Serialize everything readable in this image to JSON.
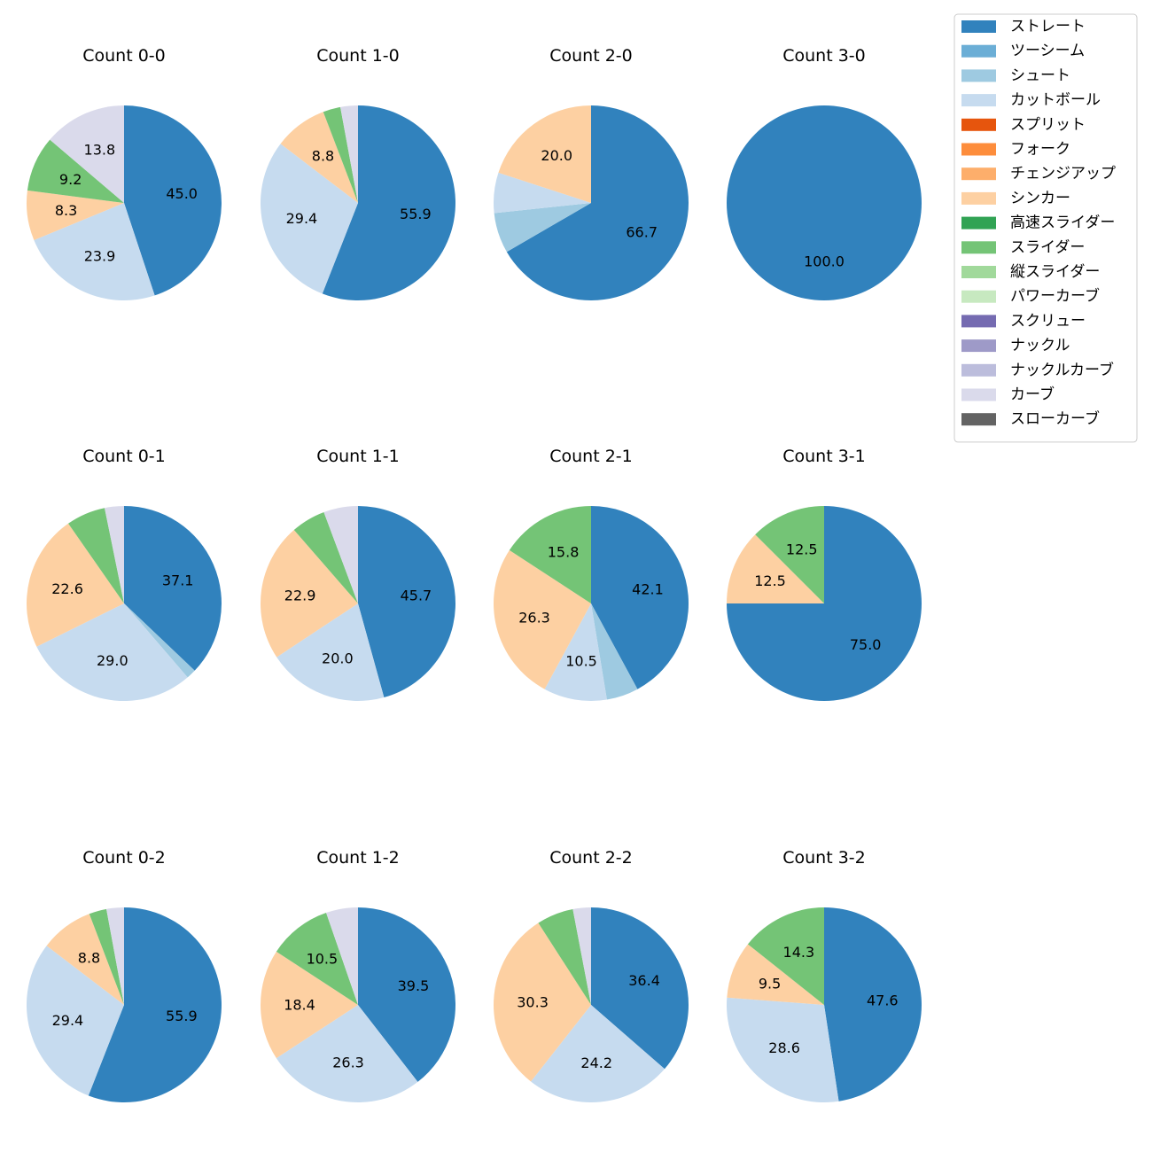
{
  "legend": {
    "placement": "top-right",
    "items": [
      {
        "name": "ストレート",
        "color": "#3182bd"
      },
      {
        "name": "ツーシーム",
        "color": "#6baed6"
      },
      {
        "name": "シュート",
        "color": "#9ecae1"
      },
      {
        "name": "カットボール",
        "color": "#c6dbef"
      },
      {
        "name": "スプリット",
        "color": "#e6550d"
      },
      {
        "name": "フォーク",
        "color": "#fd8d3c"
      },
      {
        "name": "チェンジアップ",
        "color": "#fdae6b"
      },
      {
        "name": "シンカー",
        "color": "#fdd0a2"
      },
      {
        "name": "高速スライダー",
        "color": "#31a354"
      },
      {
        "name": "スライダー",
        "color": "#74c476"
      },
      {
        "name": "縦スライダー",
        "color": "#a1d99b"
      },
      {
        "name": "パワーカーブ",
        "color": "#c7e9c0"
      },
      {
        "name": "スクリュー",
        "color": "#756bb1"
      },
      {
        "name": "ナックル",
        "color": "#9e9ac8"
      },
      {
        "name": "ナックルカーブ",
        "color": "#bcbddc"
      },
      {
        "name": "カーブ",
        "color": "#dadaeb"
      },
      {
        "name": "スローカーブ",
        "color": "#636363"
      }
    ]
  },
  "chart_data": [
    {
      "type": "pie",
      "title": "Count 0-0",
      "slices": [
        {
          "name": "ストレート",
          "value": 45.0,
          "label": "45.0"
        },
        {
          "name": "カットボール",
          "value": 23.9,
          "label": "23.9"
        },
        {
          "name": "シンカー",
          "value": 8.3,
          "label": "8.3"
        },
        {
          "name": "スライダー",
          "value": 9.2,
          "label": "9.2"
        },
        {
          "name": "カーブ",
          "value": 13.8,
          "label": "13.8"
        }
      ]
    },
    {
      "type": "pie",
      "title": "Count 1-0",
      "slices": [
        {
          "name": "ストレート",
          "value": 55.9,
          "label": "55.9"
        },
        {
          "name": "カットボール",
          "value": 29.4,
          "label": "29.4"
        },
        {
          "name": "シンカー",
          "value": 8.8,
          "label": "8.8"
        },
        {
          "name": "スライダー",
          "value": 2.9,
          "label": ""
        },
        {
          "name": "カーブ",
          "value": 2.9,
          "label": ""
        }
      ]
    },
    {
      "type": "pie",
      "title": "Count 2-0",
      "slices": [
        {
          "name": "ストレート",
          "value": 66.7,
          "label": "66.7"
        },
        {
          "name": "シュート",
          "value": 6.7,
          "label": ""
        },
        {
          "name": "カットボール",
          "value": 6.7,
          "label": ""
        },
        {
          "name": "シンカー",
          "value": 20.0,
          "label": "20.0"
        }
      ]
    },
    {
      "type": "pie",
      "title": "Count 3-0",
      "slices": [
        {
          "name": "ストレート",
          "value": 100.0,
          "label": "100.0"
        }
      ]
    },
    {
      "type": "pie",
      "title": "Count 0-1",
      "slices": [
        {
          "name": "ストレート",
          "value": 37.1,
          "label": "37.1"
        },
        {
          "name": "シュート",
          "value": 1.6,
          "label": ""
        },
        {
          "name": "カットボール",
          "value": 29.0,
          "label": "29.0"
        },
        {
          "name": "シンカー",
          "value": 22.6,
          "label": "22.6"
        },
        {
          "name": "スライダー",
          "value": 6.5,
          "label": ""
        },
        {
          "name": "カーブ",
          "value": 3.2,
          "label": ""
        }
      ]
    },
    {
      "type": "pie",
      "title": "Count 1-1",
      "slices": [
        {
          "name": "ストレート",
          "value": 45.7,
          "label": "45.7"
        },
        {
          "name": "カットボール",
          "value": 20.0,
          "label": "20.0"
        },
        {
          "name": "シンカー",
          "value": 22.9,
          "label": "22.9"
        },
        {
          "name": "スライダー",
          "value": 5.7,
          "label": ""
        },
        {
          "name": "カーブ",
          "value": 5.7,
          "label": ""
        }
      ]
    },
    {
      "type": "pie",
      "title": "Count 2-1",
      "slices": [
        {
          "name": "ストレート",
          "value": 42.1,
          "label": "42.1"
        },
        {
          "name": "シュート",
          "value": 5.3,
          "label": ""
        },
        {
          "name": "カットボール",
          "value": 10.5,
          "label": "10.5"
        },
        {
          "name": "シンカー",
          "value": 26.3,
          "label": "26.3"
        },
        {
          "name": "スライダー",
          "value": 15.8,
          "label": "15.8"
        }
      ]
    },
    {
      "type": "pie",
      "title": "Count 3-1",
      "slices": [
        {
          "name": "ストレート",
          "value": 75.0,
          "label": "75.0"
        },
        {
          "name": "シンカー",
          "value": 12.5,
          "label": "12.5"
        },
        {
          "name": "スライダー",
          "value": 12.5,
          "label": "12.5"
        }
      ]
    },
    {
      "type": "pie",
      "title": "Count 0-2",
      "slices": [
        {
          "name": "ストレート",
          "value": 55.9,
          "label": "55.9"
        },
        {
          "name": "カットボール",
          "value": 29.4,
          "label": "29.4"
        },
        {
          "name": "シンカー",
          "value": 8.8,
          "label": "8.8"
        },
        {
          "name": "スライダー",
          "value": 2.9,
          "label": ""
        },
        {
          "name": "カーブ",
          "value": 2.9,
          "label": ""
        }
      ]
    },
    {
      "type": "pie",
      "title": "Count 1-2",
      "slices": [
        {
          "name": "ストレート",
          "value": 39.5,
          "label": "39.5"
        },
        {
          "name": "カットボール",
          "value": 26.3,
          "label": "26.3"
        },
        {
          "name": "シンカー",
          "value": 18.4,
          "label": "18.4"
        },
        {
          "name": "スライダー",
          "value": 10.5,
          "label": "10.5"
        },
        {
          "name": "カーブ",
          "value": 5.3,
          "label": ""
        }
      ]
    },
    {
      "type": "pie",
      "title": "Count 2-2",
      "slices": [
        {
          "name": "ストレート",
          "value": 36.4,
          "label": "36.4"
        },
        {
          "name": "カットボール",
          "value": 24.2,
          "label": "24.2"
        },
        {
          "name": "シンカー",
          "value": 30.3,
          "label": "30.3"
        },
        {
          "name": "スライダー",
          "value": 6.1,
          "label": ""
        },
        {
          "name": "カーブ",
          "value": 3.0,
          "label": ""
        }
      ]
    },
    {
      "type": "pie",
      "title": "Count 3-2",
      "slices": [
        {
          "name": "ストレート",
          "value": 47.6,
          "label": "47.6"
        },
        {
          "name": "カットボール",
          "value": 28.6,
          "label": "28.6"
        },
        {
          "name": "シンカー",
          "value": 9.5,
          "label": "9.5"
        },
        {
          "name": "スライダー",
          "value": 14.3,
          "label": "14.3"
        }
      ]
    }
  ]
}
